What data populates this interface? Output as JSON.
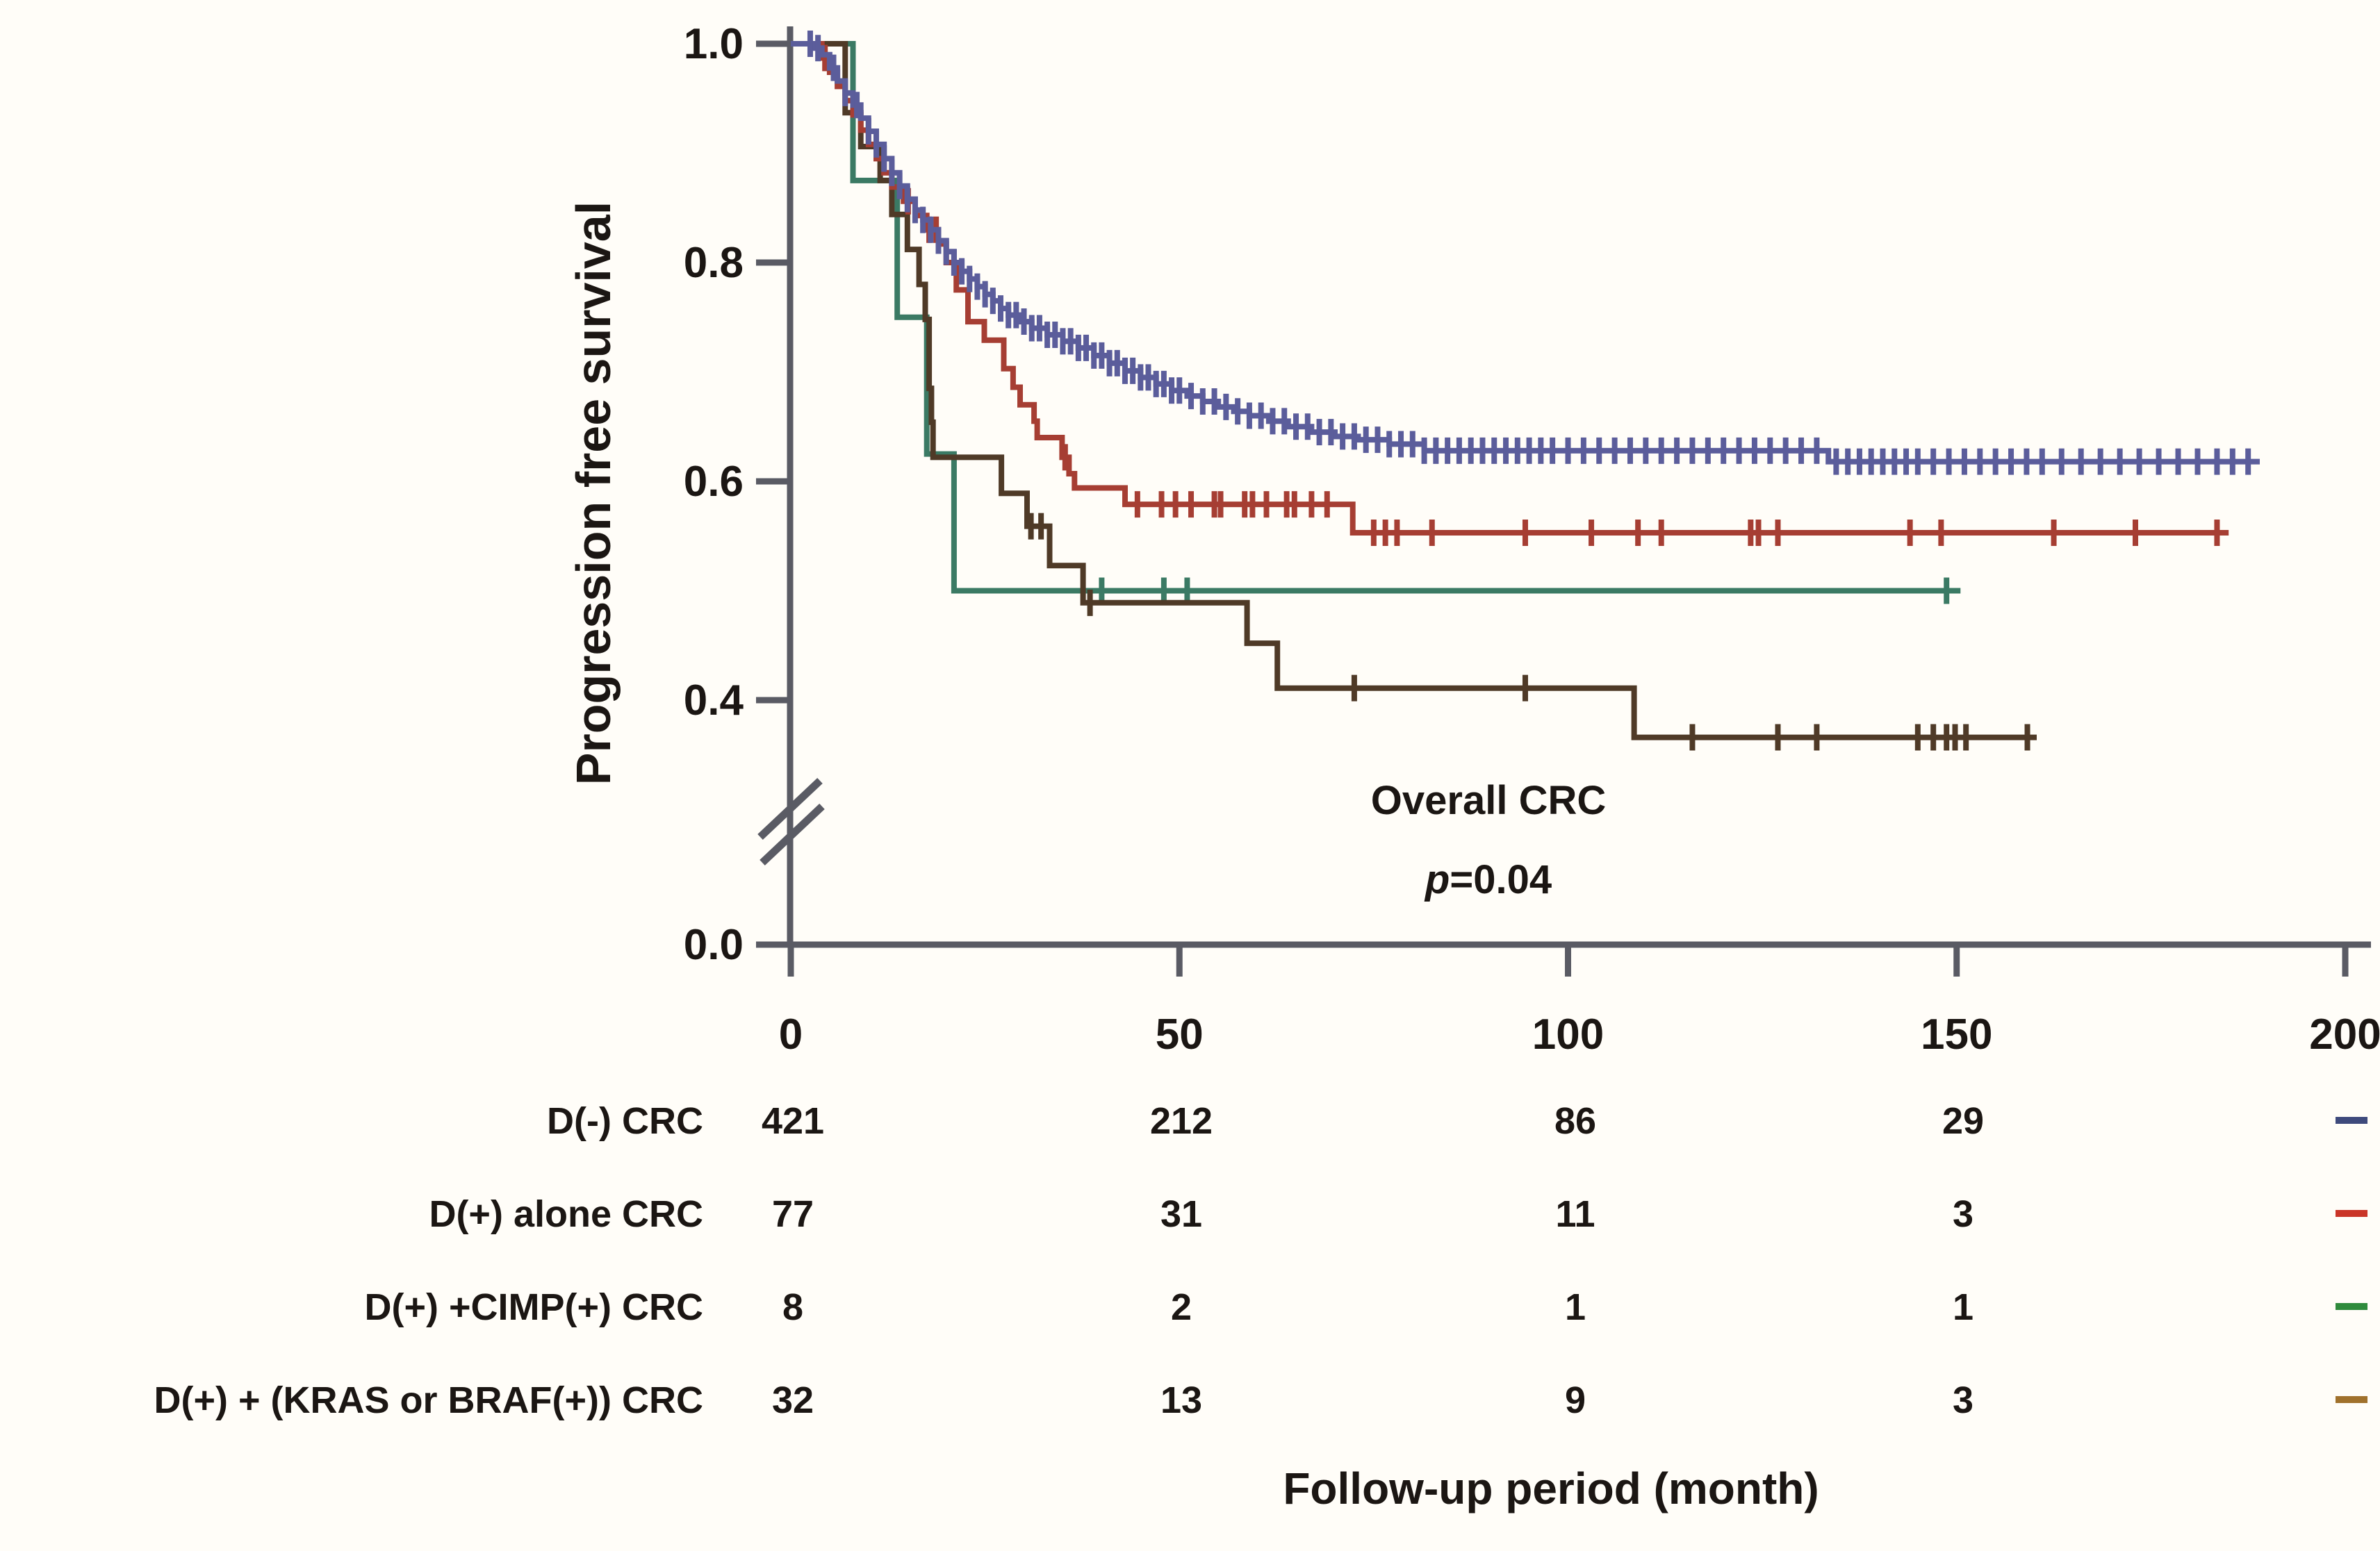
{
  "figure": {
    "background": "#fffdf8",
    "axis_color": "#5a5b64",
    "text_color": "#1b1613",
    "y_axis": {
      "title": "Progression free survival",
      "ticks": [
        {
          "label": "1.0",
          "value": 1.0
        },
        {
          "label": "0.8",
          "value": 0.8
        },
        {
          "label": "0.6",
          "value": 0.6
        },
        {
          "label": "0.4",
          "value": 0.4
        },
        {
          "label": "0.0",
          "value": 0.0
        }
      ],
      "axis_break": true
    },
    "x_axis": {
      "title": "Follow-up period (month)",
      "ticks": [
        {
          "label": "0",
          "value": 0
        },
        {
          "label": "50",
          "value": 50
        },
        {
          "label": "100",
          "value": 100
        },
        {
          "label": "150",
          "value": 150
        },
        {
          "label": "200",
          "value": 200
        }
      ]
    },
    "annotation": {
      "line1": "Overall CRC",
      "p_italic": "p",
      "p_rest": "=0.04"
    }
  },
  "chart_data": {
    "type": "line",
    "subtype": "kaplan-meier-step",
    "title": "Overall CRC p=0.04",
    "xlabel": "Follow-up period (month)",
    "ylabel": "Progression free survival",
    "xlim": [
      0,
      200
    ],
    "ylim_shown": [
      0.3,
      1.0
    ],
    "y_break_between": [
      0.0,
      0.3
    ],
    "legend_position": "risk-table-left",
    "risk_table_times": [
      0,
      50,
      100,
      150,
      200
    ],
    "series": [
      {
        "name": "D(-) CRC",
        "curve_color": "#5b5d9b",
        "label_color": "#3e4a7c",
        "n_at_risk": [
          "421",
          "212",
          "86",
          "29",
          "—"
        ],
        "end_time": 189,
        "steps": [
          [
            3,
            0.996
          ],
          [
            4,
            0.99
          ],
          [
            5,
            0.978
          ],
          [
            6,
            0.966
          ],
          [
            7,
            0.955
          ],
          [
            8,
            0.944
          ],
          [
            9,
            0.932
          ],
          [
            10,
            0.92
          ],
          [
            11,
            0.908
          ],
          [
            12,
            0.895
          ],
          [
            13,
            0.882
          ],
          [
            14,
            0.87
          ],
          [
            15,
            0.858
          ],
          [
            16,
            0.848
          ],
          [
            17,
            0.839
          ],
          [
            18,
            0.83
          ],
          [
            19,
            0.82
          ],
          [
            20,
            0.81
          ],
          [
            21,
            0.8
          ],
          [
            22,
            0.792
          ],
          [
            23,
            0.785
          ],
          [
            24,
            0.778
          ],
          [
            25,
            0.771
          ],
          [
            26,
            0.765
          ],
          [
            27,
            0.758
          ],
          [
            28,
            0.752
          ],
          [
            29.5,
            0.746
          ],
          [
            31,
            0.74
          ],
          [
            33,
            0.734
          ],
          [
            35,
            0.728
          ],
          [
            37,
            0.722
          ],
          [
            39,
            0.715
          ],
          [
            41,
            0.708
          ],
          [
            43,
            0.701
          ],
          [
            45,
            0.695
          ],
          [
            47,
            0.689
          ],
          [
            49,
            0.683
          ],
          [
            51,
            0.678
          ],
          [
            53,
            0.673
          ],
          [
            55,
            0.668
          ],
          [
            57,
            0.664
          ],
          [
            59,
            0.66
          ],
          [
            61.5,
            0.655
          ],
          [
            64,
            0.65
          ],
          [
            67,
            0.645
          ],
          [
            70,
            0.641
          ],
          [
            73,
            0.638
          ],
          [
            77,
            0.634
          ],
          [
            81.5,
            0.628
          ],
          [
            133.5,
            0.618
          ]
        ],
        "censors": [
          2.5,
          3.5,
          5.5,
          7,
          8.5,
          10,
          11,
          12,
          13,
          14,
          15,
          16,
          17,
          18,
          19,
          20,
          21,
          22,
          23,
          24,
          25,
          26,
          27,
          28,
          29,
          30,
          31,
          32,
          33,
          34,
          35,
          36,
          37,
          38,
          39,
          40,
          41,
          42,
          43,
          44,
          45,
          46,
          47,
          48,
          49,
          50,
          51.5,
          53,
          54.5,
          56,
          57.5,
          59,
          60.5,
          62,
          63.5,
          65,
          66.5,
          68,
          69.5,
          71,
          72.5,
          74,
          75.5,
          77,
          78.5,
          80,
          81.5,
          83,
          84.5,
          86,
          87.5,
          89,
          90.5,
          92,
          93.5,
          95,
          96.5,
          98,
          100,
          102,
          104,
          106,
          108,
          110,
          112,
          114,
          116,
          118,
          120,
          122,
          124,
          126,
          128,
          130,
          132,
          134.5,
          136,
          137.5,
          139,
          140.5,
          142,
          143.5,
          145,
          147,
          149,
          151,
          153,
          155,
          157,
          159,
          161,
          163.5,
          166,
          168.5,
          171,
          173.5,
          176,
          178.5,
          181,
          183.5,
          185.5,
          187.5
        ]
      },
      {
        "name": "D(+) alone CRC",
        "curve_color": "#a63e33",
        "label_color": "#ca3528",
        "n_at_risk": [
          "77",
          "31",
          "11",
          "3",
          "—"
        ],
        "end_time": 185,
        "steps": [
          [
            4,
            0.987
          ],
          [
            5,
            0.974
          ],
          [
            6,
            0.961
          ],
          [
            7,
            0.948
          ],
          [
            8,
            0.935
          ],
          [
            9,
            0.921
          ],
          [
            10,
            0.908
          ],
          [
            11,
            0.895
          ],
          [
            12,
            0.882
          ],
          [
            13,
            0.869
          ],
          [
            14.5,
            0.856
          ],
          [
            16,
            0.843
          ],
          [
            17.5,
            0.83
          ],
          [
            19,
            0.817
          ],
          [
            20,
            0.8
          ],
          [
            21.3,
            0.775
          ],
          [
            22.8,
            0.746
          ],
          [
            24.9,
            0.729
          ],
          [
            27.4,
            0.703
          ],
          [
            28.6,
            0.686
          ],
          [
            29.5,
            0.67
          ],
          [
            31.3,
            0.655
          ],
          [
            31.7,
            0.64
          ],
          [
            34.9,
            0.622
          ],
          [
            35.8,
            0.607
          ],
          [
            36.5,
            0.594
          ],
          [
            43,
            0.579
          ],
          [
            72.3,
            0.553
          ]
        ],
        "censors": [
          4.4,
          15.1,
          17.8,
          18.7,
          35.3,
          44.6,
          47.7,
          49.5,
          51.5,
          54.5,
          55.3,
          58.4,
          59.4,
          61.2,
          63.8,
          64.8,
          67,
          69,
          75,
          76.5,
          78,
          82.5,
          94.5,
          103,
          109,
          112,
          123.5,
          124.5,
          127,
          144,
          148,
          162.5,
          173,
          183.5
        ]
      },
      {
        "name": "D(+) +CIMP(+) CRC",
        "curve_color": "#3b7a64",
        "label_color": "#2f8b3c",
        "n_at_risk": [
          "8",
          "2",
          "1",
          "1",
          "—"
        ],
        "end_time": 150.5,
        "steps": [
          [
            8,
            0.875
          ],
          [
            13.7,
            0.75
          ],
          [
            17.5,
            0.625
          ],
          [
            21,
            0.5
          ]
        ],
        "censors": [
          40,
          48,
          51,
          148.7
        ]
      },
      {
        "name": "D(+) + (KRAS or BRAF(+)) CRC",
        "curve_color": "#4f3a27",
        "label_color": "#a0712c",
        "n_at_risk": [
          "32",
          "13",
          "9",
          "3",
          "—"
        ],
        "end_time": 160.3,
        "steps": [
          [
            7,
            0.937
          ],
          [
            9,
            0.906
          ],
          [
            11.5,
            0.875
          ],
          [
            13,
            0.844
          ],
          [
            15,
            0.812
          ],
          [
            16.5,
            0.78
          ],
          [
            17.3,
            0.748
          ],
          [
            17.8,
            0.685
          ],
          [
            18.1,
            0.654
          ],
          [
            18.3,
            0.622
          ],
          [
            27.1,
            0.589
          ],
          [
            30.4,
            0.559
          ],
          [
            33.3,
            0.523
          ],
          [
            37.6,
            0.489
          ],
          [
            58.7,
            0.452
          ],
          [
            62.6,
            0.411
          ],
          [
            108.5,
            0.366
          ]
        ],
        "censors": [
          30.9,
          32.2,
          38.5,
          72.5,
          94.5,
          116,
          127,
          132,
          145,
          147,
          148.7,
          149.8,
          151.2,
          159.1
        ]
      }
    ]
  }
}
